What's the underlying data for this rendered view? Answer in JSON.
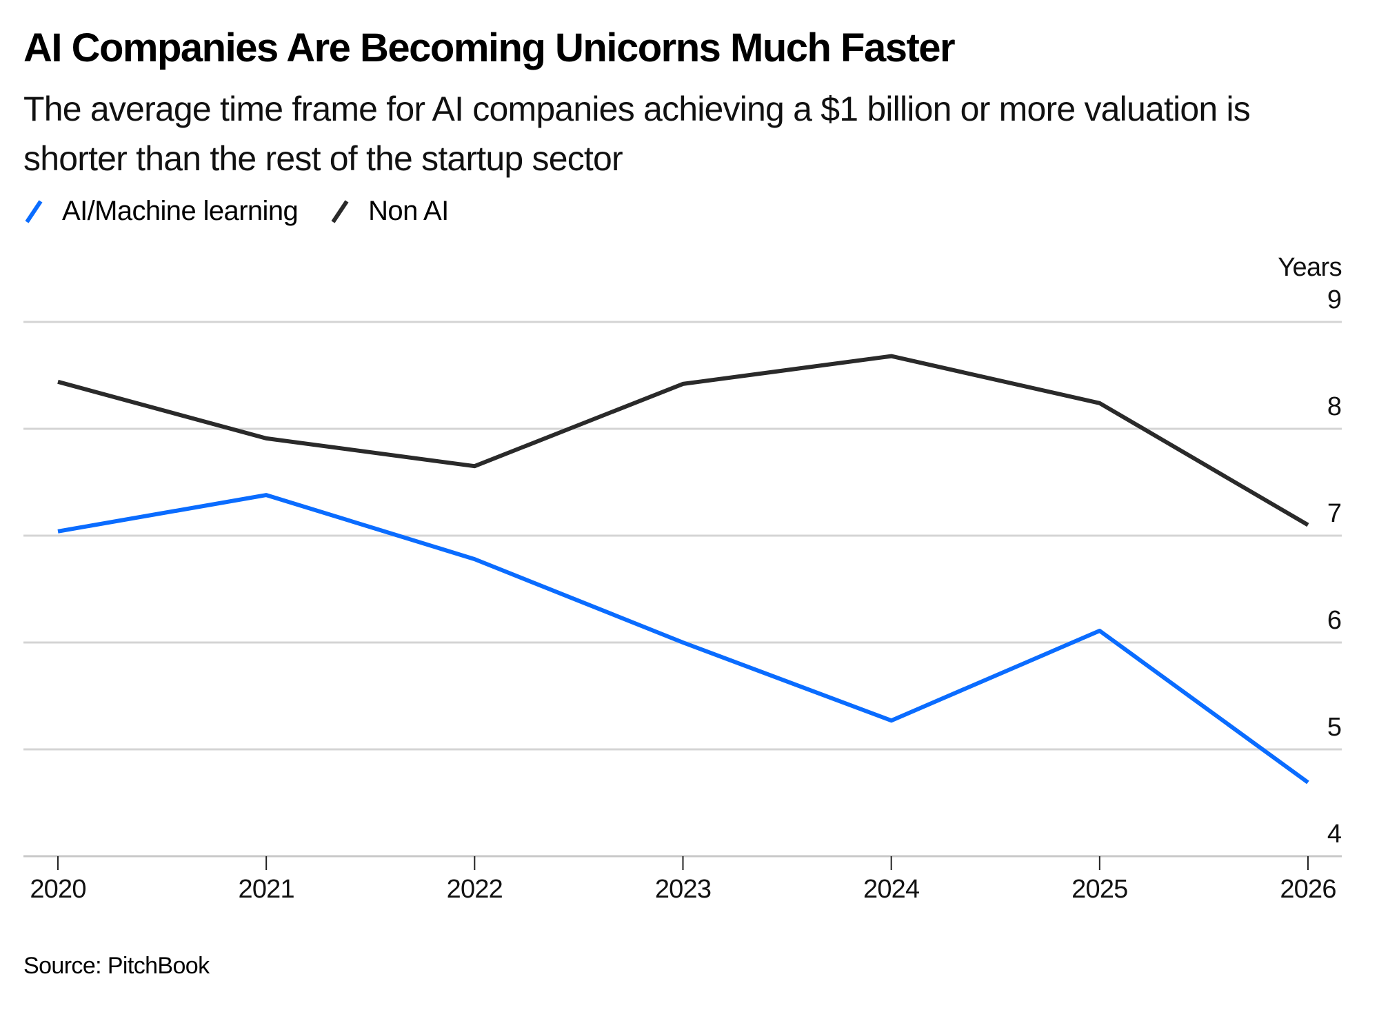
{
  "header": {
    "title": "AI Companies Are Becoming Unicorns Much Faster",
    "subtitle": "The average time frame for AI companies achieving a $1 billion or more valuation is shorter than the rest of the startup sector"
  },
  "legend": [
    {
      "label": "AI/Machine learning",
      "color": "#0a6cff"
    },
    {
      "label": "Non AI",
      "color": "#2a2a2a"
    }
  ],
  "footer": {
    "source": "Source: PitchBook"
  },
  "chart_data": {
    "type": "line",
    "title": "AI Companies Are Becoming Unicorns Much Faster",
    "subtitle": "The average time frame for AI companies achieving a $1 billion or more valuation is shorter than the rest of the startup sector",
    "xlabel": "",
    "ylabel": "Years",
    "x": [
      "2020",
      "2021",
      "2022",
      "2023",
      "2024",
      "2025",
      "2026"
    ],
    "ylim": [
      4,
      9
    ],
    "yticks": [
      4,
      5,
      6,
      7,
      8,
      9
    ],
    "yaxis_side": "right",
    "grid": true,
    "legend_position": "top-left",
    "series": [
      {
        "name": "AI/Machine learning",
        "color": "#0a6cff",
        "values": [
          7.04,
          7.38,
          6.78,
          6.0,
          5.27,
          6.11,
          4.69
        ]
      },
      {
        "name": "Non AI",
        "color": "#2a2a2a",
        "values": [
          8.44,
          7.91,
          7.65,
          8.42,
          8.68,
          8.24,
          7.1
        ]
      }
    ],
    "source": "Source: PitchBook"
  }
}
